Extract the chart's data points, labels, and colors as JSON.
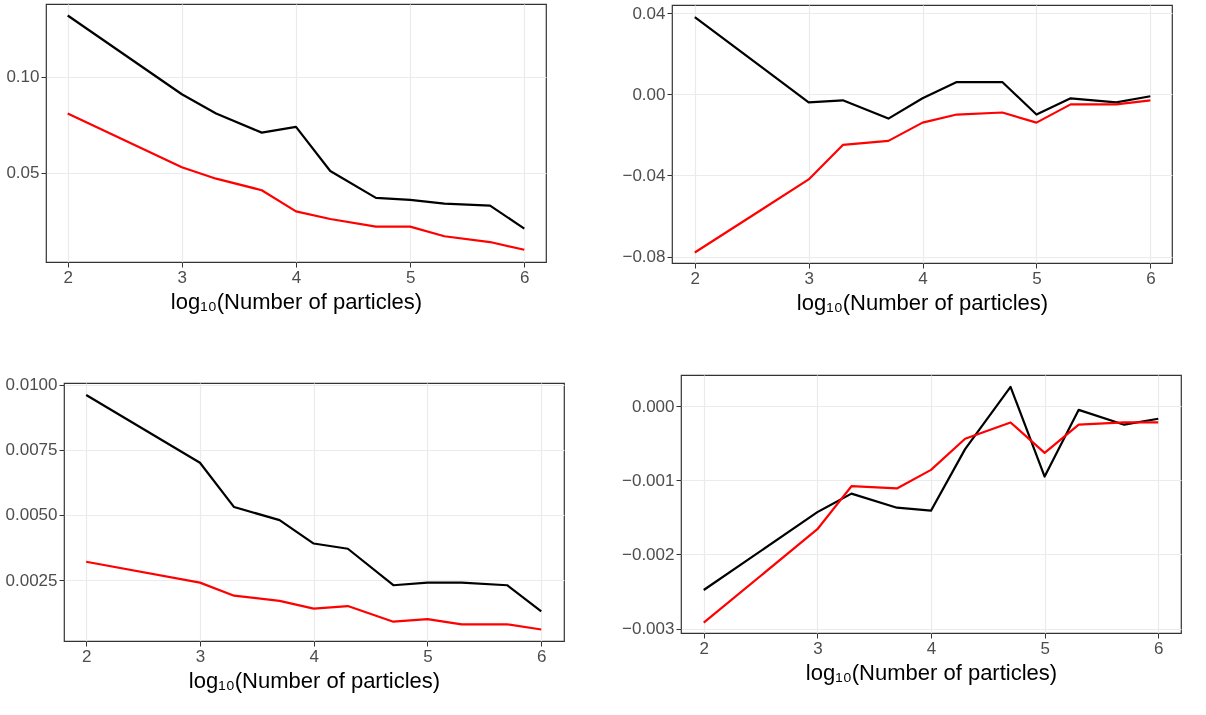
{
  "chart_data": [
    {
      "type": "line",
      "xlabel": "log₁₀(Number of particles)",
      "x": [
        2,
        3,
        3.3,
        3.7,
        4,
        4.3,
        4.7,
        5,
        5.3,
        5.7,
        6
      ],
      "xlim": [
        1.81,
        6.19
      ],
      "xticks": [
        2,
        3,
        4,
        5,
        6
      ],
      "ylim": [
        0.0036,
        0.138
      ],
      "yticks": [
        {
          "value": 0.05,
          "label": "0.05"
        },
        {
          "value": 0.1,
          "label": "0.10"
        }
      ],
      "grid": true,
      "series": [
        {
          "color": "#000000",
          "values": [
            0.132,
            0.091,
            0.081,
            0.071,
            0.074,
            0.051,
            0.037,
            0.036,
            0.034,
            0.033,
            0.021
          ]
        },
        {
          "color": "#ff0000",
          "values": [
            0.081,
            0.053,
            0.047,
            0.041,
            0.03,
            0.026,
            0.022,
            0.022,
            0.017,
            0.014,
            0.01
          ]
        }
      ]
    },
    {
      "type": "line",
      "xlabel": "log₁₀(Number of particles)",
      "x": [
        2,
        3,
        3.3,
        3.7,
        4,
        4.3,
        4.7,
        5,
        5.3,
        5.7,
        6
      ],
      "xlim": [
        1.8,
        6.19
      ],
      "xticks": [
        2,
        3,
        4,
        5,
        6
      ],
      "ylim": [
        -0.0832,
        0.044
      ],
      "yticks": [
        {
          "value": -0.08,
          "label": "−0.08"
        },
        {
          "value": -0.04,
          "label": "−0.04"
        },
        {
          "value": 0,
          "label": "0.00"
        },
        {
          "value": 0.04,
          "label": "0.04"
        }
      ],
      "grid": true,
      "series": [
        {
          "color": "#000000",
          "values": [
            0.038,
            -0.004,
            -0.003,
            -0.012,
            -0.002,
            0.006,
            0.006,
            -0.01,
            -0.002,
            -0.004,
            -0.001
          ]
        },
        {
          "color": "#ff0000",
          "values": [
            -0.078,
            -0.042,
            -0.025,
            -0.023,
            -0.014,
            -0.01,
            -0.009,
            -0.014,
            -0.005,
            -0.005,
            -0.003
          ]
        }
      ]
    },
    {
      "type": "line",
      "xlabel": "log₁₀(Number of particles)",
      "x": [
        2,
        3,
        3.3,
        3.7,
        4,
        4.3,
        4.7,
        5,
        5.3,
        5.7,
        6
      ],
      "xlim": [
        1.805,
        6.2
      ],
      "xticks": [
        2,
        3,
        4,
        5,
        6
      ],
      "ylim": [
        0.00016,
        0.01006
      ],
      "yticks": [
        {
          "value": 0.0025,
          "label": "0.0025"
        },
        {
          "value": 0.005,
          "label": "0.0050"
        },
        {
          "value": 0.0075,
          "label": "0.0075"
        },
        {
          "value": 0.01,
          "label": "0.0100"
        }
      ],
      "grid": true,
      "series": [
        {
          "color": "#000000",
          "values": [
            0.0096,
            0.007,
            0.0053,
            0.0048,
            0.0039,
            0.0037,
            0.0023,
            0.0024,
            0.0024,
            0.0023,
            0.0013
          ]
        },
        {
          "color": "#ff0000",
          "values": [
            0.0032,
            0.0024,
            0.0019,
            0.0017,
            0.0014,
            0.0015,
            0.0009,
            0.001,
            0.0008,
            0.0008,
            0.0006
          ]
        }
      ]
    },
    {
      "type": "line",
      "xlabel": "log₁₀(Number of particles)",
      "x": [
        2,
        3,
        3.3,
        3.7,
        4,
        4.3,
        4.7,
        5,
        5.3,
        5.7,
        6
      ],
      "xlim": [
        1.8,
        6.2
      ],
      "xticks": [
        2,
        3,
        4,
        5,
        6
      ],
      "ylim": [
        -0.00306,
        0.00042
      ],
      "yticks": [
        {
          "value": -0.003,
          "label": "−0.003"
        },
        {
          "value": -0.002,
          "label": "−0.002"
        },
        {
          "value": -0.001,
          "label": "−0.001"
        },
        {
          "value": 0,
          "label": "0.000"
        }
      ],
      "grid": true,
      "series": [
        {
          "color": "#000000",
          "values": [
            -0.00248,
            -0.00143,
            -0.00118,
            -0.00137,
            -0.00141,
            -0.00058,
            0.00026,
            -0.00095,
            -5e-05,
            -0.00025,
            -0.00017
          ]
        },
        {
          "color": "#ff0000",
          "values": [
            -0.00292,
            -0.00166,
            -0.00108,
            -0.00111,
            -0.00086,
            -0.00044,
            -0.00022,
            -0.00063,
            -0.00025,
            -0.00022,
            -0.00022
          ]
        }
      ]
    }
  ]
}
